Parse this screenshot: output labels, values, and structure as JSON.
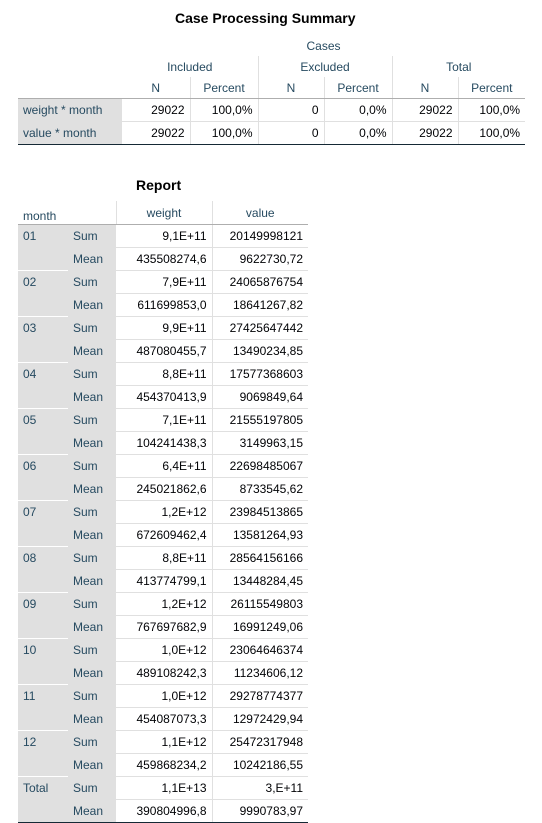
{
  "summary": {
    "title": "Case Processing Summary",
    "cases_label": "Cases",
    "groups": [
      "Included",
      "Excluded",
      "Total"
    ],
    "subheaders": [
      "N",
      "Percent",
      "N",
      "Percent",
      "N",
      "Percent"
    ],
    "rows": [
      {
        "label": "weight  * month",
        "values": [
          "29022",
          "100,0%",
          "0",
          "0,0%",
          "29022",
          "100,0%"
        ]
      },
      {
        "label": "value  * month",
        "values": [
          "29022",
          "100,0%",
          "0",
          "0,0%",
          "29022",
          "100,0%"
        ]
      }
    ]
  },
  "report": {
    "title": "Report",
    "headers": {
      "group": "month",
      "col1": "weight",
      "col2": "value"
    },
    "stat_labels": {
      "sum": "Sum",
      "mean": "Mean"
    },
    "groups": [
      {
        "label": "01",
        "sum": [
          "9,1E+11",
          "20149998121"
        ],
        "mean": [
          "435508274,6",
          "9622730,72"
        ]
      },
      {
        "label": "02",
        "sum": [
          "7,9E+11",
          "24065876754"
        ],
        "mean": [
          "611699853,0",
          "18641267,82"
        ]
      },
      {
        "label": "03",
        "sum": [
          "9,9E+11",
          "27425647442"
        ],
        "mean": [
          "487080455,7",
          "13490234,85"
        ]
      },
      {
        "label": "04",
        "sum": [
          "8,8E+11",
          "17577368603"
        ],
        "mean": [
          "454370413,9",
          "9069849,64"
        ]
      },
      {
        "label": "05",
        "sum": [
          "7,1E+11",
          "21555197805"
        ],
        "mean": [
          "104241438,3",
          "3149963,15"
        ]
      },
      {
        "label": "06",
        "sum": [
          "6,4E+11",
          "22698485067"
        ],
        "mean": [
          "245021862,6",
          "8733545,62"
        ]
      },
      {
        "label": "07",
        "sum": [
          "1,2E+12",
          "23984513865"
        ],
        "mean": [
          "672609462,4",
          "13581264,93"
        ]
      },
      {
        "label": "08",
        "sum": [
          "8,8E+11",
          "28564156166"
        ],
        "mean": [
          "413774799,1",
          "13448284,45"
        ]
      },
      {
        "label": "09",
        "sum": [
          "1,2E+12",
          "26115549803"
        ],
        "mean": [
          "767697682,9",
          "16991249,06"
        ]
      },
      {
        "label": "10",
        "sum": [
          "1,0E+12",
          "23064646374"
        ],
        "mean": [
          "489108242,3",
          "11234606,12"
        ]
      },
      {
        "label": "11",
        "sum": [
          "1,0E+12",
          "29278774377"
        ],
        "mean": [
          "454087073,3",
          "12972429,94"
        ]
      },
      {
        "label": "12",
        "sum": [
          "1,1E+12",
          "25472317948"
        ],
        "mean": [
          "459868234,2",
          "10242186,55"
        ]
      },
      {
        "label": "Total",
        "sum": [
          "1,1E+13",
          "3,E+11"
        ],
        "mean": [
          "390804996,8",
          "9990783,97"
        ]
      }
    ]
  }
}
